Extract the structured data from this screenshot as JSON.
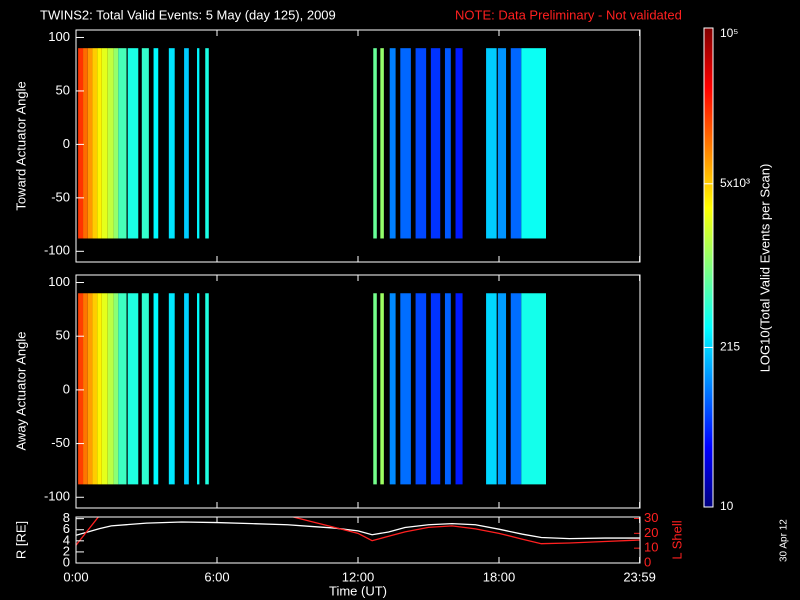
{
  "chart_data": [
    {
      "type": "heatmap",
      "title": "TWINS2: Total Valid Events:  5 May (day 125), 2009",
      "note": "NOTE: Data Preliminary - Not validated",
      "ylabel": "Toward Actuator Angle",
      "xlim": [
        0,
        24
      ],
      "ylim": [
        -110,
        107
      ],
      "yticks": [
        -100,
        -50,
        0,
        50,
        100
      ],
      "angle_range": [
        -88,
        90
      ],
      "colorbar": {
        "label": "LOG10(Total Valid Events per Scan)",
        "lim": [
          10,
          100000
        ],
        "log": true,
        "ticks": [
          10,
          215,
          {
            "value": 5000,
            "label": "5x10³"
          },
          {
            "value": 100000,
            "label": "10⁵"
          }
        ]
      },
      "footnote": "30 Apr 12",
      "strips": [
        {
          "t": [
            0.09,
            0.3
          ],
          "value": 20000
        },
        {
          "t": [
            0.3,
            0.5
          ],
          "value": 12000
        },
        {
          "t": [
            0.5,
            0.7
          ],
          "value": 8000
        },
        {
          "t": [
            0.7,
            0.9
          ],
          "value": 5000
        },
        {
          "t": [
            0.9,
            1.1
          ],
          "value": 3500
        },
        {
          "t": [
            1.1,
            1.35
          ],
          "value": 2500
        },
        {
          "t": [
            1.35,
            1.6
          ],
          "value": 1800
        },
        {
          "t": [
            1.6,
            1.8
          ],
          "value": 1200
        },
        {
          "t": [
            1.8,
            2.15
          ],
          "value": 600
        },
        {
          "t": [
            2.2,
            2.65
          ],
          "value": 400
        },
        {
          "t": [
            2.8,
            3.1
          ],
          "value": 500
        },
        {
          "t": [
            3.3,
            3.5
          ],
          "value": 300
        },
        {
          "t": [
            3.95,
            4.2
          ],
          "value": 250
        },
        {
          "t": [
            4.6,
            4.8
          ],
          "value": 200
        },
        {
          "t": [
            5.15,
            5.25
          ],
          "value": 300
        },
        {
          "t": [
            5.5,
            5.65
          ],
          "value": 400
        },
        {
          "t": [
            12.65,
            12.8
          ],
          "value": 800
        },
        {
          "t": [
            12.95,
            13.1
          ],
          "value": 1200
        },
        {
          "t": [
            13.35,
            13.6
          ],
          "value": 100
        },
        {
          "t": [
            13.8,
            14.25
          ],
          "value": 80
        },
        {
          "t": [
            14.45,
            14.9
          ],
          "value": 60
        },
        {
          "t": [
            15.1,
            15.5
          ],
          "value": 50
        },
        {
          "t": [
            15.7,
            15.95
          ],
          "value": 70
        },
        {
          "t": [
            16.15,
            16.45
          ],
          "value": 40
        },
        {
          "t": [
            17.45,
            17.9
          ],
          "value": 200
        },
        {
          "t": [
            17.95,
            18.3
          ],
          "value": 120
        },
        {
          "t": [
            18.5,
            18.95
          ],
          "value": 80
        },
        {
          "t": [
            18.95,
            20.0
          ],
          "value": 350
        }
      ]
    },
    {
      "type": "heatmap",
      "ylabel": "Away Actuator Angle",
      "xlim": [
        0,
        24
      ],
      "ylim": [
        -110,
        107
      ],
      "yticks": [
        -100,
        -50,
        0,
        50,
        100
      ],
      "angle_range": [
        -88,
        90
      ],
      "strips": [
        {
          "t": [
            0.09,
            0.3
          ],
          "value": 18000
        },
        {
          "t": [
            0.3,
            0.5
          ],
          "value": 11000
        },
        {
          "t": [
            0.5,
            0.7
          ],
          "value": 7500
        },
        {
          "t": [
            0.7,
            0.9
          ],
          "value": 5000
        },
        {
          "t": [
            0.9,
            1.1
          ],
          "value": 3500
        },
        {
          "t": [
            1.1,
            1.35
          ],
          "value": 2500
        },
        {
          "t": [
            1.35,
            1.6
          ],
          "value": 1700
        },
        {
          "t": [
            1.6,
            1.8
          ],
          "value": 1100
        },
        {
          "t": [
            1.8,
            2.15
          ],
          "value": 550
        },
        {
          "t": [
            2.2,
            2.65
          ],
          "value": 420
        },
        {
          "t": [
            2.8,
            3.1
          ],
          "value": 480
        },
        {
          "t": [
            3.3,
            3.5
          ],
          "value": 300
        },
        {
          "t": [
            3.95,
            4.2
          ],
          "value": 260
        },
        {
          "t": [
            4.6,
            4.8
          ],
          "value": 210
        },
        {
          "t": [
            5.15,
            5.25
          ],
          "value": 320
        },
        {
          "t": [
            5.5,
            5.65
          ],
          "value": 420
        },
        {
          "t": [
            12.65,
            12.8
          ],
          "value": 900
        },
        {
          "t": [
            12.95,
            13.1
          ],
          "value": 1300
        },
        {
          "t": [
            13.35,
            13.6
          ],
          "value": 110
        },
        {
          "t": [
            13.8,
            14.25
          ],
          "value": 85
        },
        {
          "t": [
            14.45,
            14.9
          ],
          "value": 60
        },
        {
          "t": [
            15.1,
            15.5
          ],
          "value": 50
        },
        {
          "t": [
            15.7,
            15.95
          ],
          "value": 75
        },
        {
          "t": [
            16.15,
            16.45
          ],
          "value": 40
        },
        {
          "t": [
            17.45,
            17.9
          ],
          "value": 220
        },
        {
          "t": [
            17.95,
            18.3
          ],
          "value": 130
        },
        {
          "t": [
            18.5,
            18.95
          ],
          "value": 85
        },
        {
          "t": [
            18.95,
            20.0
          ],
          "value": 380
        }
      ]
    },
    {
      "type": "line",
      "xlabel": "Time (UT)",
      "ylabel": "R [RE]",
      "y2label": "L Shell",
      "xlim": [
        0,
        24
      ],
      "xticks": [
        {
          "value": 0,
          "label": "0:00"
        },
        {
          "value": 6,
          "label": "6:00"
        },
        {
          "value": 12,
          "label": "12:00"
        },
        {
          "value": 18,
          "label": "18:00"
        },
        {
          "value": 23.983,
          "label": "23:59"
        }
      ],
      "ylim": [
        0,
        8.3
      ],
      "yticks": [
        0,
        2,
        4,
        6,
        8
      ],
      "y2lim": [
        0,
        31
      ],
      "y2ticks": [
        0,
        10,
        20,
        30
      ],
      "x": [
        0,
        0.5,
        1,
        1.5,
        3,
        4.5,
        6,
        7.5,
        9,
        10,
        11,
        12,
        12.6,
        13.3,
        14,
        15,
        16,
        17,
        18,
        19,
        19.8,
        21,
        22.5,
        24
      ],
      "series": [
        {
          "color": "#ffffff",
          "values": [
            5,
            5.6,
            6.2,
            6.7,
            7.2,
            7.4,
            7.3,
            7.1,
            6.9,
            6.6,
            6.3,
            5.8,
            5.1,
            5.6,
            6.4,
            6.9,
            7.1,
            6.9,
            6.1,
            5.2,
            4.6,
            4.4,
            4.5,
            4.5
          ]
        },
        {
          "color": "#ff2020",
          "axis": "y2",
          "values": [
            12,
            22,
            32,
            null,
            null,
            null,
            null,
            null,
            32,
            28,
            24,
            20,
            15,
            18,
            21,
            24,
            25,
            23,
            20,
            16,
            13,
            13.5,
            14.5,
            15.5
          ]
        }
      ]
    }
  ]
}
